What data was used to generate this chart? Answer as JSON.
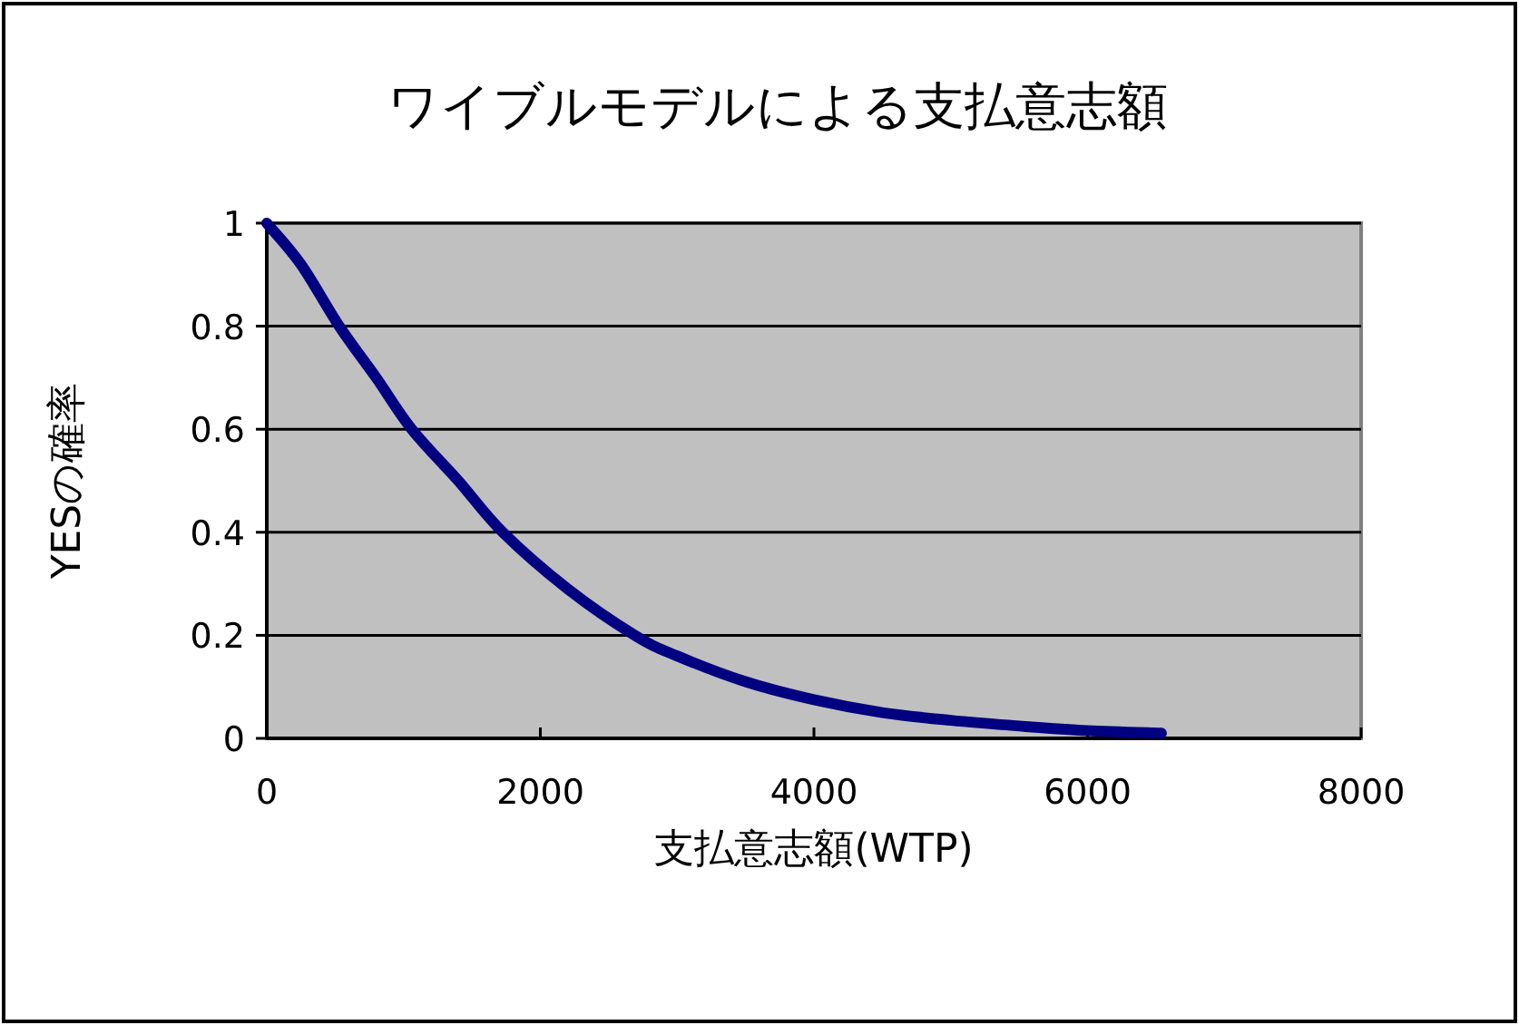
{
  "chart_data": {
    "type": "line",
    "title": "ワイブルモデルによる支払意志額",
    "xlabel": "支払意志額(WTP)",
    "ylabel": "YESの確率",
    "series": [
      {
        "color": "#000080",
        "x": [
          0,
          250,
          530,
          800,
          1060,
          1400,
          1725,
          2200,
          2690,
          3000,
          3500,
          4000,
          4500,
          5000,
          5500,
          6000,
          6540
        ],
        "values": [
          1,
          0.92,
          0.8,
          0.7,
          0.6,
          0.5,
          0.4,
          0.29,
          0.2,
          0.16,
          0.11,
          0.075,
          0.05,
          0.035,
          0.024,
          0.015,
          0.01
        ]
      }
    ],
    "xlim": [
      0,
      8000
    ],
    "xticks": [
      0,
      2000,
      4000,
      6000,
      8000
    ],
    "ylim": [
      0,
      1
    ],
    "yticks": [
      0,
      0.2,
      0.4,
      0.6,
      0.8,
      1
    ],
    "grid": "y",
    "marker": "none",
    "line_style": "solid"
  }
}
